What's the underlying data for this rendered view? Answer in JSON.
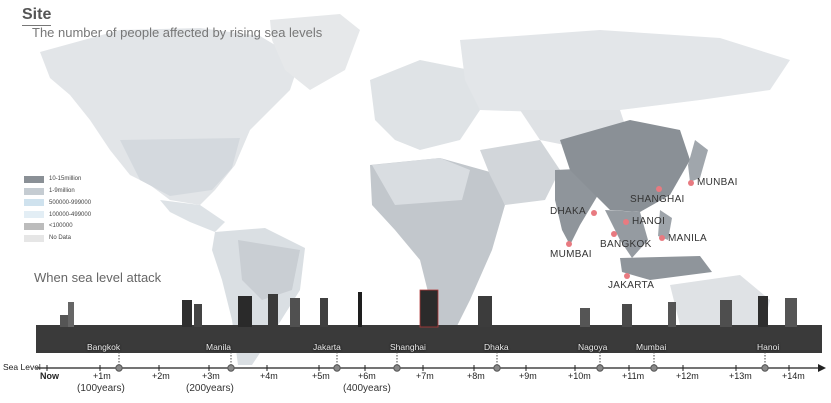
{
  "header": {
    "title": "Site",
    "subtitle": "The number of people affected by rising sea levels"
  },
  "legend": [
    {
      "label": "10-15million",
      "color": "#8a9096"
    },
    {
      "label": "1-9million",
      "color": "#c5ccd2"
    },
    {
      "label": "500000-999000",
      "color": "#cfe2ee"
    },
    {
      "label": "100000-499000",
      "color": "#e3eef5"
    },
    {
      "label": "<100000",
      "color": "#bcbcbc"
    },
    {
      "label": "No Data",
      "color": "#e6e6e6"
    }
  ],
  "map_cities": [
    {
      "name": "MUNBAI"
    },
    {
      "name": "SHANGHAI"
    },
    {
      "name": "DHAKA"
    },
    {
      "name": "HANOI"
    },
    {
      "name": "MANILA"
    },
    {
      "name": "BANGKOK"
    },
    {
      "name": "MUMBAI"
    },
    {
      "name": "JAKARTA"
    }
  ],
  "timeline": {
    "section_title": "When sea level attack",
    "sea_level_label": "Sea Level",
    "skyline_cities": [
      "Bangkok",
      "Manila",
      "Jakarta",
      "Shanghai",
      "Dhaka",
      "Nagoya",
      "Mumbai",
      "Hanoi"
    ],
    "ticks": [
      "Now",
      "+1m",
      "+2m",
      "+3m",
      "+4m",
      "+5m",
      "+6m",
      "+7m",
      "+8m",
      "+9m",
      "+10m",
      "+11m",
      "+12m",
      "+13m",
      "+14m"
    ],
    "years": [
      "(100years)",
      "(200years)",
      "(400years)"
    ]
  },
  "colors": {
    "land_default": "#e4e6e8",
    "land_dark": "#a9adb2",
    "asia_highlight": "#8a9096",
    "city_dot": "#e87a80",
    "axis": "#222222"
  }
}
